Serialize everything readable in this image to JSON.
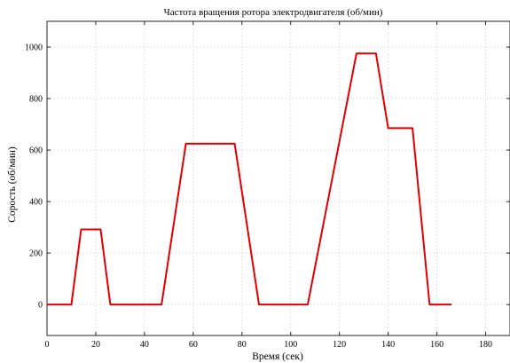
{
  "chart_data": {
    "type": "line",
    "title": "Частота вращения ротора электродвигателя  (об/мин)",
    "xlabel": "Время (сек)",
    "ylabel": "Сорость (об/мин)",
    "xlim": [
      0,
      190
    ],
    "ylim": [
      -120,
      1100
    ],
    "xticks": [
      0,
      20,
      40,
      60,
      80,
      100,
      120,
      140,
      160,
      180
    ],
    "yticks": [
      0,
      200,
      400,
      600,
      800,
      1000
    ],
    "grid": true,
    "series": [
      {
        "color": "#e00000",
        "x": [
          0,
          10,
          14,
          22,
          26,
          47,
          57,
          77,
          87,
          107,
          127,
          135,
          140,
          150,
          157,
          166
        ],
        "y": [
          0,
          0,
          292,
          292,
          0,
          0,
          625,
          625,
          0,
          0,
          975,
          975,
          685,
          685,
          0,
          0
        ]
      }
    ]
  }
}
